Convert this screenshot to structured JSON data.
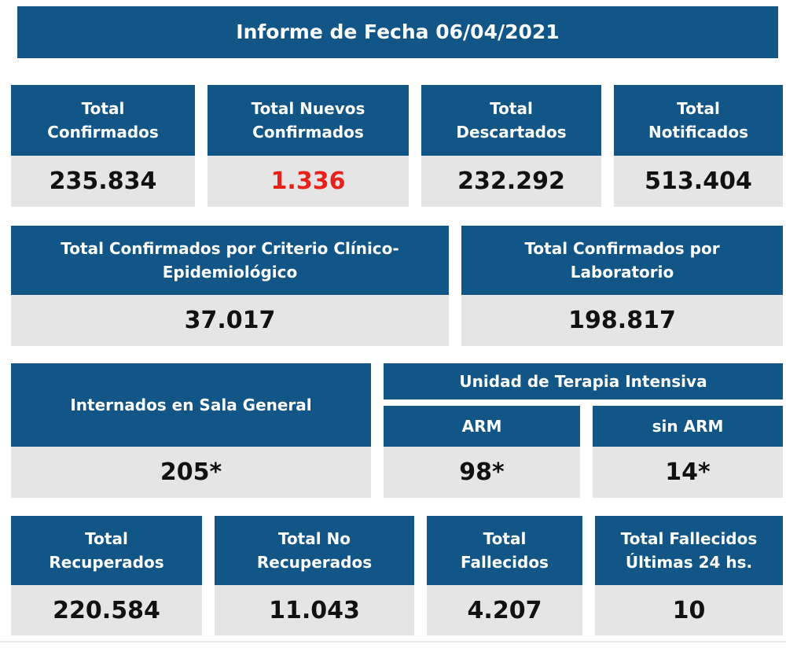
{
  "title": "Informe de Fecha 06/04/2021",
  "colors": {
    "header_bg": "#125687",
    "value_bg": "#e5e5e5",
    "alert": "#e8211b"
  },
  "row1": [
    {
      "label": "Total Confirmados",
      "value": "235.834"
    },
    {
      "label": "Total Nuevos Confirmados",
      "value": "1.336"
    },
    {
      "label": "Total Descartados",
      "value": "232.292"
    },
    {
      "label": "Total Notificados",
      "value": "513.404"
    }
  ],
  "row2": [
    {
      "label": "Total Confirmados por Criterio Clínico-Epidemiológico",
      "value": "37.017"
    },
    {
      "label": "Total Confirmados por Laboratorio",
      "value": "198.817"
    }
  ],
  "row3": {
    "sala_general": {
      "label": "Internados en Sala General",
      "value": "205*"
    },
    "uti": {
      "label": "Unidad de Terapia Intensiva",
      "arm": {
        "label": "ARM",
        "value": "98*"
      },
      "sin_arm": {
        "label": "sin ARM",
        "value": "14*"
      }
    }
  },
  "row4": [
    {
      "label": "Total Recuperados",
      "value": "220.584"
    },
    {
      "label": "Total No Recuperados",
      "value": "11.043"
    },
    {
      "label": "Total Fallecidos",
      "value": "4.207"
    },
    {
      "label": "Total Fallecidos Últimas 24 hs.",
      "value": "10"
    }
  ]
}
